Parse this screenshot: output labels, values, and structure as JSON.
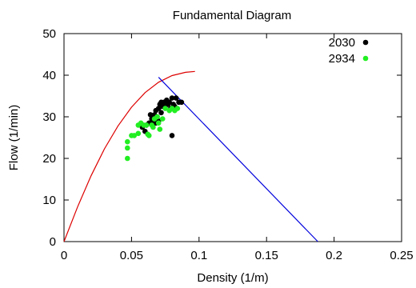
{
  "chart_data": {
    "type": "scatter",
    "title": "Fundamental Diagram",
    "xlabel": "Density (1/m)",
    "ylabel": "Flow (1/min)",
    "xlim": [
      0,
      0.25
    ],
    "ylim": [
      0,
      50
    ],
    "xticks": [
      {
        "value": 0,
        "label": "0"
      },
      {
        "value": 0.05,
        "label": "0.05"
      },
      {
        "value": 0.1,
        "label": "0.1"
      },
      {
        "value": 0.15,
        "label": "0.15"
      },
      {
        "value": 0.2,
        "label": "0.2"
      },
      {
        "value": 0.25,
        "label": "0.25"
      }
    ],
    "yticks": [
      {
        "value": 0,
        "label": "0"
      },
      {
        "value": 10,
        "label": "10"
      },
      {
        "value": 20,
        "label": "20"
      },
      {
        "value": 30,
        "label": "30"
      },
      {
        "value": 40,
        "label": "40"
      },
      {
        "value": 50,
        "label": "50"
      }
    ],
    "grid": false,
    "legend_position": "top-right",
    "series": [
      {
        "name": "2030",
        "kind": "points",
        "color": "#000000",
        "points": [
          [
            0.058,
            27.5
          ],
          [
            0.061,
            28.0
          ],
          [
            0.063,
            28.5
          ],
          [
            0.064,
            30.5
          ],
          [
            0.065,
            29.5
          ],
          [
            0.066,
            29.0
          ],
          [
            0.067,
            30.5
          ],
          [
            0.068,
            31.5
          ],
          [
            0.069,
            30.0
          ],
          [
            0.07,
            32.0
          ],
          [
            0.07,
            29.0
          ],
          [
            0.071,
            33.0
          ],
          [
            0.072,
            31.0
          ],
          [
            0.073,
            32.5
          ],
          [
            0.074,
            33.5
          ],
          [
            0.075,
            32.5
          ],
          [
            0.076,
            34.0
          ],
          [
            0.077,
            33.0
          ],
          [
            0.078,
            33.5
          ],
          [
            0.079,
            32.0
          ],
          [
            0.08,
            34.5
          ],
          [
            0.08,
            25.5
          ],
          [
            0.081,
            33.0
          ],
          [
            0.082,
            32.5
          ],
          [
            0.083,
            34.5
          ],
          [
            0.085,
            33.5
          ],
          [
            0.087,
            33.5
          ],
          [
            0.06,
            26.5
          ],
          [
            0.068,
            28.5
          ],
          [
            0.072,
            33.5
          ]
        ]
      },
      {
        "name": "2934",
        "kind": "points",
        "color": "#22ee22",
        "points": [
          [
            0.047,
            20.0
          ],
          [
            0.047,
            22.5
          ],
          [
            0.047,
            24.0
          ],
          [
            0.05,
            25.5
          ],
          [
            0.052,
            25.5
          ],
          [
            0.055,
            26.0
          ],
          [
            0.055,
            28.0
          ],
          [
            0.057,
            28.5
          ],
          [
            0.059,
            28.0
          ],
          [
            0.061,
            28.0
          ],
          [
            0.063,
            25.5
          ],
          [
            0.065,
            28.0
          ],
          [
            0.067,
            29.5
          ],
          [
            0.069,
            30.0
          ],
          [
            0.07,
            28.5
          ],
          [
            0.071,
            27.0
          ],
          [
            0.073,
            29.5
          ],
          [
            0.075,
            32.0
          ],
          [
            0.078,
            31.5
          ],
          [
            0.08,
            32.0
          ],
          [
            0.082,
            31.5
          ],
          [
            0.084,
            32.0
          ],
          [
            0.066,
            27.5
          ],
          [
            0.062,
            25.8
          ]
        ]
      },
      {
        "name": "",
        "kind": "line",
        "color": "#dd0000",
        "points": [
          [
            0.0,
            0.0
          ],
          [
            0.01,
            8.3
          ],
          [
            0.02,
            15.8
          ],
          [
            0.03,
            22.3
          ],
          [
            0.04,
            27.8
          ],
          [
            0.05,
            32.3
          ],
          [
            0.06,
            35.8
          ],
          [
            0.07,
            38.3
          ],
          [
            0.08,
            39.9
          ],
          [
            0.09,
            40.7
          ],
          [
            0.097,
            40.9
          ]
        ]
      },
      {
        "name": "",
        "kind": "line",
        "color": "#0000dd",
        "points": [
          [
            0.07,
            39.5
          ],
          [
            0.188,
            0.0
          ]
        ]
      }
    ]
  },
  "colors": {
    "axis": "#000000",
    "background": "#ffffff"
  }
}
